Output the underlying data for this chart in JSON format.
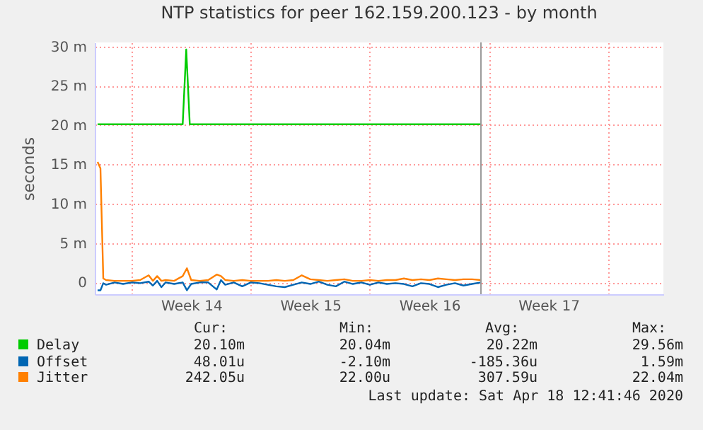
{
  "chart_data": {
    "type": "line",
    "title": "NTP statistics for peer 162.159.200.123 - by month",
    "ylabel": "seconds",
    "x": [
      "2020-03-27T00:00",
      "2020-03-27T04:00",
      "2020-03-27T08:00",
      "2020-03-27T12:00",
      "2020-03-28T00:00",
      "2020-03-28T12:00",
      "2020-03-29T00:00",
      "2020-03-29T12:00",
      "2020-03-30T00:00",
      "2020-03-30T06:00",
      "2020-03-30T12:00",
      "2020-03-30T18:00",
      "2020-03-31T00:00",
      "2020-03-31T12:00",
      "2020-04-01T00:00",
      "2020-04-01T06:00",
      "2020-04-01T12:00",
      "2020-04-02T00:00",
      "2020-04-02T12:00",
      "2020-04-03T00:00",
      "2020-04-03T06:00",
      "2020-04-03T12:00",
      "2020-04-04T00:00",
      "2020-04-04T12:00",
      "2020-04-05T00:00",
      "2020-04-05T12:00",
      "2020-04-06T00:00",
      "2020-04-06T12:00",
      "2020-04-07T00:00",
      "2020-04-07T12:00",
      "2020-04-08T00:00",
      "2020-04-08T12:00",
      "2020-04-09T00:00",
      "2020-04-09T12:00",
      "2020-04-10T00:00",
      "2020-04-10T12:00",
      "2020-04-11T00:00",
      "2020-04-11T12:00",
      "2020-04-12T00:00",
      "2020-04-12T12:00",
      "2020-04-13T00:00",
      "2020-04-13T12:00",
      "2020-04-14T00:00",
      "2020-04-14T12:00",
      "2020-04-15T00:00",
      "2020-04-15T12:00",
      "2020-04-16T00:00",
      "2020-04-16T12:00",
      "2020-04-17T00:00",
      "2020-04-17T12:00",
      "2020-04-18T00:00",
      "2020-04-18T12:41"
    ],
    "series": [
      {
        "name": "Delay",
        "color": "#00cc00",
        "x": [
          "2020-03-27T00:00",
          "2020-04-01T00:00",
          "2020-04-01T05:00",
          "2020-04-01T10:00",
          "2020-04-18T12:41"
        ],
        "values": [
          20.1,
          20.1,
          29.6,
          20.1,
          20.1
        ]
      },
      {
        "name": "Offset",
        "color": "#0066b3",
        "values": [
          -1.0,
          -1.0,
          -0.1,
          -0.3,
          0.0,
          -0.2,
          0.0,
          -0.1,
          0.1,
          -0.4,
          0.2,
          -0.6,
          0.0,
          -0.2,
          0.0,
          -1.0,
          -0.2,
          0.0,
          0.0,
          -0.9,
          0.3,
          -0.3,
          0.0,
          -0.5,
          0.0,
          -0.1,
          -0.3,
          -0.5,
          -0.6,
          -0.3,
          0.0,
          -0.2,
          0.1,
          -0.3,
          -0.5,
          0.1,
          -0.2,
          0.0,
          -0.3,
          0.0,
          -0.2,
          -0.1,
          -0.2,
          -0.5,
          -0.1,
          -0.2,
          -0.6,
          -0.3,
          -0.1,
          -0.4,
          -0.2,
          0.0
        ]
      },
      {
        "name": "Jitter",
        "color": "#ff8000",
        "values": [
          15.3,
          14.5,
          0.5,
          0.3,
          0.2,
          0.2,
          0.2,
          0.3,
          0.9,
          0.2,
          0.8,
          0.2,
          0.3,
          0.2,
          0.8,
          1.8,
          0.3,
          0.2,
          0.3,
          1.0,
          0.8,
          0.3,
          0.2,
          0.3,
          0.2,
          0.2,
          0.2,
          0.3,
          0.2,
          0.3,
          0.9,
          0.4,
          0.3,
          0.2,
          0.3,
          0.4,
          0.2,
          0.2,
          0.3,
          0.2,
          0.3,
          0.3,
          0.5,
          0.3,
          0.4,
          0.3,
          0.5,
          0.4,
          0.3,
          0.4,
          0.4,
          0.3
        ]
      }
    ],
    "xlim": [
      "2020-03-26T20:00",
      "2020-04-29T06:00"
    ],
    "xticks": [
      {
        "value": "2020-03-29T00:00",
        "label": null
      },
      {
        "value": "2020-04-01T12:00",
        "label": "Week 14"
      },
      {
        "value": "2020-04-05T00:00",
        "label": null
      },
      {
        "value": "2020-04-08T12:00",
        "label": "Week 15"
      },
      {
        "value": "2020-04-12T00:00",
        "label": null
      },
      {
        "value": "2020-04-15T12:00",
        "label": "Week 16"
      },
      {
        "value": "2020-04-19T00:00",
        "label": null
      },
      {
        "value": "2020-04-22T12:00",
        "label": "Week 17"
      },
      {
        "value": "2020-04-26T00:00",
        "label": null
      }
    ],
    "ylim": [
      -1.5,
      30.5
    ],
    "yticks": [
      0,
      {
        "value": 5,
        "label": "5 m"
      },
      {
        "value": 10,
        "label": "10 m"
      },
      {
        "value": 15,
        "label": "15 m"
      },
      {
        "value": 20,
        "label": "20 m"
      },
      {
        "value": 25,
        "label": "25 m"
      },
      {
        "value": 30,
        "label": "30 m"
      }
    ],
    "ref_lines": [
      {
        "axis": "x",
        "value": "2020-04-18T12:41",
        "color": "#999999"
      }
    ],
    "grid": true,
    "legend": "bottom",
    "annotations": [
      "Cur:",
      "Min:",
      "Avg:",
      "Max:",
      "20.10m",
      "20.04m",
      "20.22m",
      "29.56m",
      "48.01u",
      "-2.10m",
      "-185.36u",
      "1.59m",
      "242.05u",
      "22.00u",
      "307.59u",
      "22.04m",
      "Last update: Sat Apr 18 12:41:46 2020"
    ]
  }
}
